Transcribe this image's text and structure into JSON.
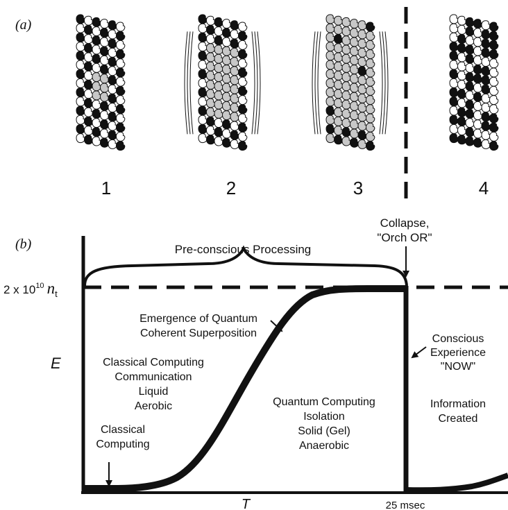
{
  "panel_a": {
    "label": "(a)",
    "stages": [
      {
        "number": "1",
        "superposition_level": 0.05,
        "vibration_arcs": 0
      },
      {
        "number": "2",
        "superposition_level": 0.5,
        "vibration_arcs": 3
      },
      {
        "number": "3",
        "superposition_level": 0.9,
        "vibration_arcs": 3
      },
      {
        "number": "4",
        "superposition_level": 0.0,
        "vibration_arcs": 0
      }
    ]
  },
  "panel_b": {
    "label": "(b)",
    "threshold": {
      "base": "2 x 10",
      "exponent": "10",
      "symbol": "n",
      "subscript": "t"
    },
    "y_axis_label": "E",
    "x_axis_label": "T",
    "time_label": "25 msec",
    "brace_label": "Pre-conscious Processing",
    "collapse_label": [
      "Collapse,",
      "\"Orch OR\""
    ],
    "emergence_label": [
      "Emergence of Quantum",
      "Coherent Superposition"
    ],
    "classical_block": [
      "Classical Computing",
      "Communication",
      "Liquid",
      "Aerobic"
    ],
    "quantum_block": [
      "Quantum Computing",
      "Isolation",
      "Solid (Gel)",
      "Anaerobic"
    ],
    "conscious_label": [
      "Conscious",
      "Experience",
      "\"NOW\""
    ],
    "information_label": [
      "Information",
      "Created"
    ],
    "classical_arrow_label": [
      "Classical",
      "Computing"
    ]
  },
  "colors": {
    "ink": "#111111",
    "gray_tubulin": "#c8c8c8",
    "white": "#ffffff"
  }
}
